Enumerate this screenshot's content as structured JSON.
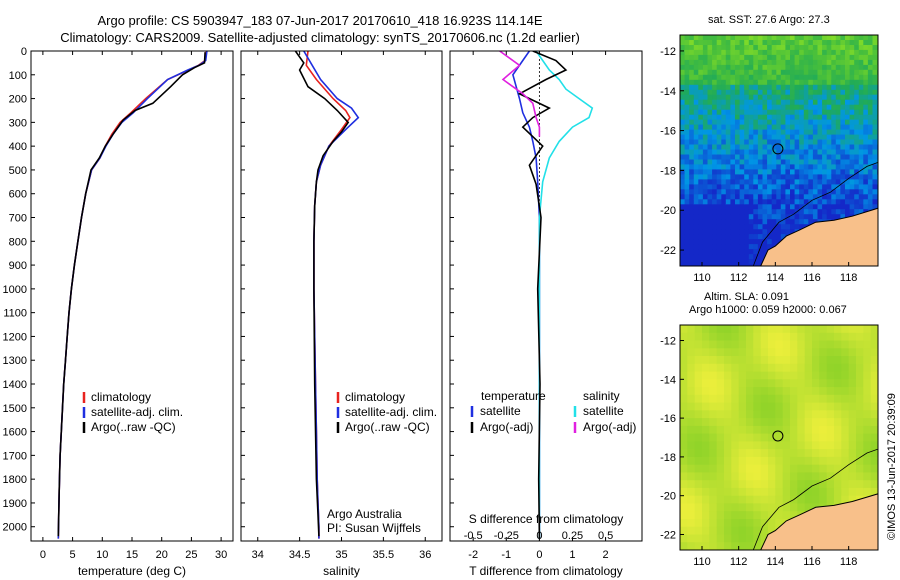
{
  "header": {
    "line1": "Argo profile: CS 5903947_183 07-Jun-2017 20170610_418 16.923S 114.14E",
    "line2": "Climatology: CARS2009. Satellite-adjusted climatology: synTS_20170606.nc (1.2d earlier)"
  },
  "colors": {
    "climatology": "#e8231f",
    "satellite": "#1f2fe0",
    "argo": "#000000",
    "salinity_sat": "#22e0e8",
    "salinity_argo": "#e020e0",
    "land": "#f8c08a"
  },
  "depth_axis": {
    "ticks": [
      0,
      100,
      200,
      300,
      400,
      500,
      600,
      700,
      800,
      900,
      1000,
      1100,
      1200,
      1300,
      1400,
      1500,
      1600,
      1700,
      1800,
      1900,
      2000
    ],
    "lim": [
      0,
      2060
    ]
  },
  "chart_data": [
    {
      "type": "line",
      "id": "temperature",
      "xlabel": "temperature (deg C)",
      "xlim": [
        -2,
        32
      ],
      "xticks": [
        0,
        5,
        10,
        15,
        20,
        25,
        30
      ],
      "legend": [
        "climatology",
        "satellite-adj. clim.",
        "Argo(..raw -QC)"
      ],
      "series": [
        {
          "name": "climatology",
          "color": "#e8231f",
          "x": [
            27.5,
            27.3,
            26.2,
            24.5,
            21,
            17.3,
            14.8,
            13,
            11.6,
            10.5,
            9.6,
            8.2,
            7.2,
            6.5,
            5.9,
            5.3,
            4.8,
            4.4,
            4.1,
            3.8,
            3.5,
            3.3,
            3.1,
            2.9,
            2.75,
            2.6
          ],
          "y": [
            0,
            40,
            60,
            80,
            120,
            200,
            260,
            300,
            350,
            400,
            450,
            500,
            600,
            700,
            800,
            900,
            1000,
            1100,
            1200,
            1300,
            1400,
            1500,
            1600,
            1700,
            1850,
            2050
          ]
        },
        {
          "name": "satellite-adj. clim.",
          "color": "#1f2fe0",
          "x": [
            27.6,
            27.4,
            26.3,
            24.4,
            21,
            17.6,
            15.2,
            13.3,
            11.8,
            10.6,
            9.6,
            8.2,
            7.2,
            6.5,
            5.9,
            5.3,
            4.8,
            4.4,
            4.1,
            3.8,
            3.5,
            3.3,
            3.1,
            2.9,
            2.75,
            2.6
          ],
          "y": [
            0,
            40,
            60,
            80,
            120,
            200,
            260,
            300,
            350,
            400,
            450,
            500,
            600,
            700,
            800,
            900,
            1000,
            1100,
            1200,
            1300,
            1400,
            1500,
            1600,
            1700,
            1850,
            2050
          ]
        },
        {
          "name": "Argo(..raw -QC)",
          "color": "#000000",
          "x": [
            27.3,
            27.2,
            25.5,
            23.5,
            21.5,
            18.5,
            15.5,
            13.5,
            11.8,
            10.5,
            9.5,
            8.1,
            7.2,
            6.5,
            5.9,
            5.3,
            4.8,
            4.4,
            4.1,
            3.8,
            3.5,
            3.3,
            3.1,
            2.9,
            2.75,
            2.6
          ],
          "y": [
            5,
            50,
            70,
            100,
            150,
            220,
            250,
            290,
            350,
            400,
            450,
            500,
            600,
            700,
            800,
            900,
            1000,
            1100,
            1200,
            1300,
            1400,
            1500,
            1600,
            1700,
            1850,
            2040
          ]
        }
      ]
    },
    {
      "type": "line",
      "id": "salinity",
      "xlabel": "salinity",
      "xlim": [
        33.8,
        36.2
      ],
      "xticks": [
        34,
        34.5,
        35,
        35.5,
        36
      ],
      "legend": [
        "climatology",
        "satellite-adj. clim.",
        "Argo(..raw -QC)"
      ],
      "annotation": [
        "Argo Australia",
        "PI: Susan Wijffels"
      ],
      "series": [
        {
          "name": "climatology",
          "color": "#e8231f",
          "x": [
            34.6,
            34.58,
            34.7,
            34.9,
            35.05,
            35.1,
            35.0,
            34.85,
            34.75,
            34.7,
            34.68,
            34.67,
            34.67,
            34.68,
            34.69,
            34.7,
            34.71,
            34.72,
            34.73,
            34.73
          ],
          "y": [
            0,
            60,
            120,
            200,
            250,
            280,
            330,
            400,
            480,
            550,
            650,
            800,
            1000,
            1200,
            1400,
            1600,
            1800,
            1900,
            2000,
            2050
          ]
        },
        {
          "name": "satellite-adj. clim.",
          "color": "#1f2fe0",
          "x": [
            34.55,
            34.65,
            34.75,
            34.95,
            35.12,
            35.2,
            35.05,
            34.85,
            34.75,
            34.7,
            34.68,
            34.67,
            34.67,
            34.68,
            34.69,
            34.7,
            34.71,
            34.72,
            34.73,
            34.73
          ],
          "y": [
            0,
            60,
            120,
            200,
            240,
            280,
            330,
            400,
            480,
            550,
            650,
            800,
            1000,
            1200,
            1400,
            1600,
            1800,
            1900,
            2000,
            2050
          ]
        },
        {
          "name": "Argo(..raw -QC)",
          "color": "#000000",
          "x": [
            34.45,
            34.55,
            34.5,
            34.6,
            34.8,
            34.95,
            35.08,
            35.0,
            34.9,
            34.78,
            34.72,
            34.7,
            34.68,
            34.67,
            34.67,
            34.68,
            34.7,
            34.72,
            34.73
          ],
          "y": [
            0,
            50,
            80,
            150,
            200,
            250,
            300,
            340,
            380,
            440,
            500,
            550,
            650,
            800,
            1000,
            1400,
            1800,
            1950,
            2040
          ]
        }
      ]
    },
    {
      "type": "line",
      "id": "difference",
      "xlabel": "T difference from climatology",
      "xlim": [
        -2.7,
        3.1
      ],
      "xticks": [
        -2,
        -1,
        0,
        1,
        2
      ],
      "xlabel2": "S difference from climatology",
      "xticks2": [
        "-0.5",
        "-0.25",
        "0",
        "0.25",
        "0.5"
      ],
      "xticks2_pos": [
        -2,
        -1,
        0,
        1,
        2
      ],
      "legend_titles": [
        "temperature",
        "salinity"
      ],
      "legend": [
        "satellite",
        "Argo(-adj)",
        "satellite",
        "Argo(-adj)"
      ],
      "series": [
        {
          "name": "satellite",
          "quantity": "temperature",
          "color": "#1f2fe0",
          "x": [
            -0.3,
            -0.5,
            -0.8,
            -0.6,
            -0.5,
            -0.3,
            -0.2,
            -0.1,
            -0.05,
            0,
            0,
            0,
            0,
            0
          ],
          "y": [
            0,
            40,
            100,
            200,
            260,
            320,
            380,
            450,
            550,
            700,
            1000,
            1400,
            1800,
            2050
          ]
        },
        {
          "name": "satellite",
          "quantity": "salinity",
          "color": "#22e0e8",
          "x": [
            -0.1,
            0.1,
            0.3,
            0.6,
            0.8,
            1.2,
            1.6,
            1.5,
            1.0,
            0.6,
            0.3,
            0.1,
            0.0,
            0,
            0
          ],
          "y": [
            0,
            40,
            80,
            120,
            160,
            200,
            240,
            280,
            320,
            380,
            450,
            550,
            700,
            1200,
            2050
          ]
        },
        {
          "name": "Argo(-adj)",
          "quantity": "temperature",
          "color": "#000000",
          "x": [
            -0.2,
            0.5,
            0.8,
            0.2,
            -0.6,
            0.3,
            -0.2,
            -0.5,
            0.1,
            -0.3,
            -0.1,
            0.05,
            -0.05,
            0.02,
            -0.02,
            0.0
          ],
          "y": [
            0,
            40,
            80,
            120,
            180,
            240,
            280,
            320,
            400,
            480,
            560,
            700,
            1000,
            1400,
            1800,
            2050
          ]
        },
        {
          "name": "Argo(-adj)",
          "quantity": "salinity",
          "color": "#e020e0",
          "x": [
            -1.2,
            -0.6,
            -1.1,
            -0.5,
            -0.2,
            -0.1,
            0,
            0
          ],
          "y": [
            0,
            60,
            120,
            180,
            220,
            280,
            320,
            360
          ]
        }
      ]
    }
  ],
  "maps": [
    {
      "id": "sst",
      "title": "sat. SST: 27.6 Argo: 27.3",
      "xticks": [
        "110",
        "112",
        "114",
        "116",
        "118"
      ],
      "yticks": [
        "-12",
        "-14",
        "-16",
        "-18",
        "-20",
        "-22"
      ],
      "marker": {
        "lon": 114.14,
        "lat": -16.92
      }
    },
    {
      "id": "sla",
      "title1": "Altim. SLA: 0.091",
      "title2": "Argo h1000: 0.059 h2000: 0.067",
      "xticks": [
        "110",
        "112",
        "114",
        "116",
        "118"
      ],
      "yticks": [
        "-12",
        "-14",
        "-16",
        "-18",
        "-20",
        "-22"
      ],
      "marker": {
        "lon": 114.14,
        "lat": -16.92
      }
    }
  ],
  "map_axes": {
    "lon": [
      108.8,
      119.6
    ],
    "lat": [
      -22.8,
      -11.2
    ]
  },
  "stamp": "©IMOS 13-Jun-2017 20:39:09"
}
